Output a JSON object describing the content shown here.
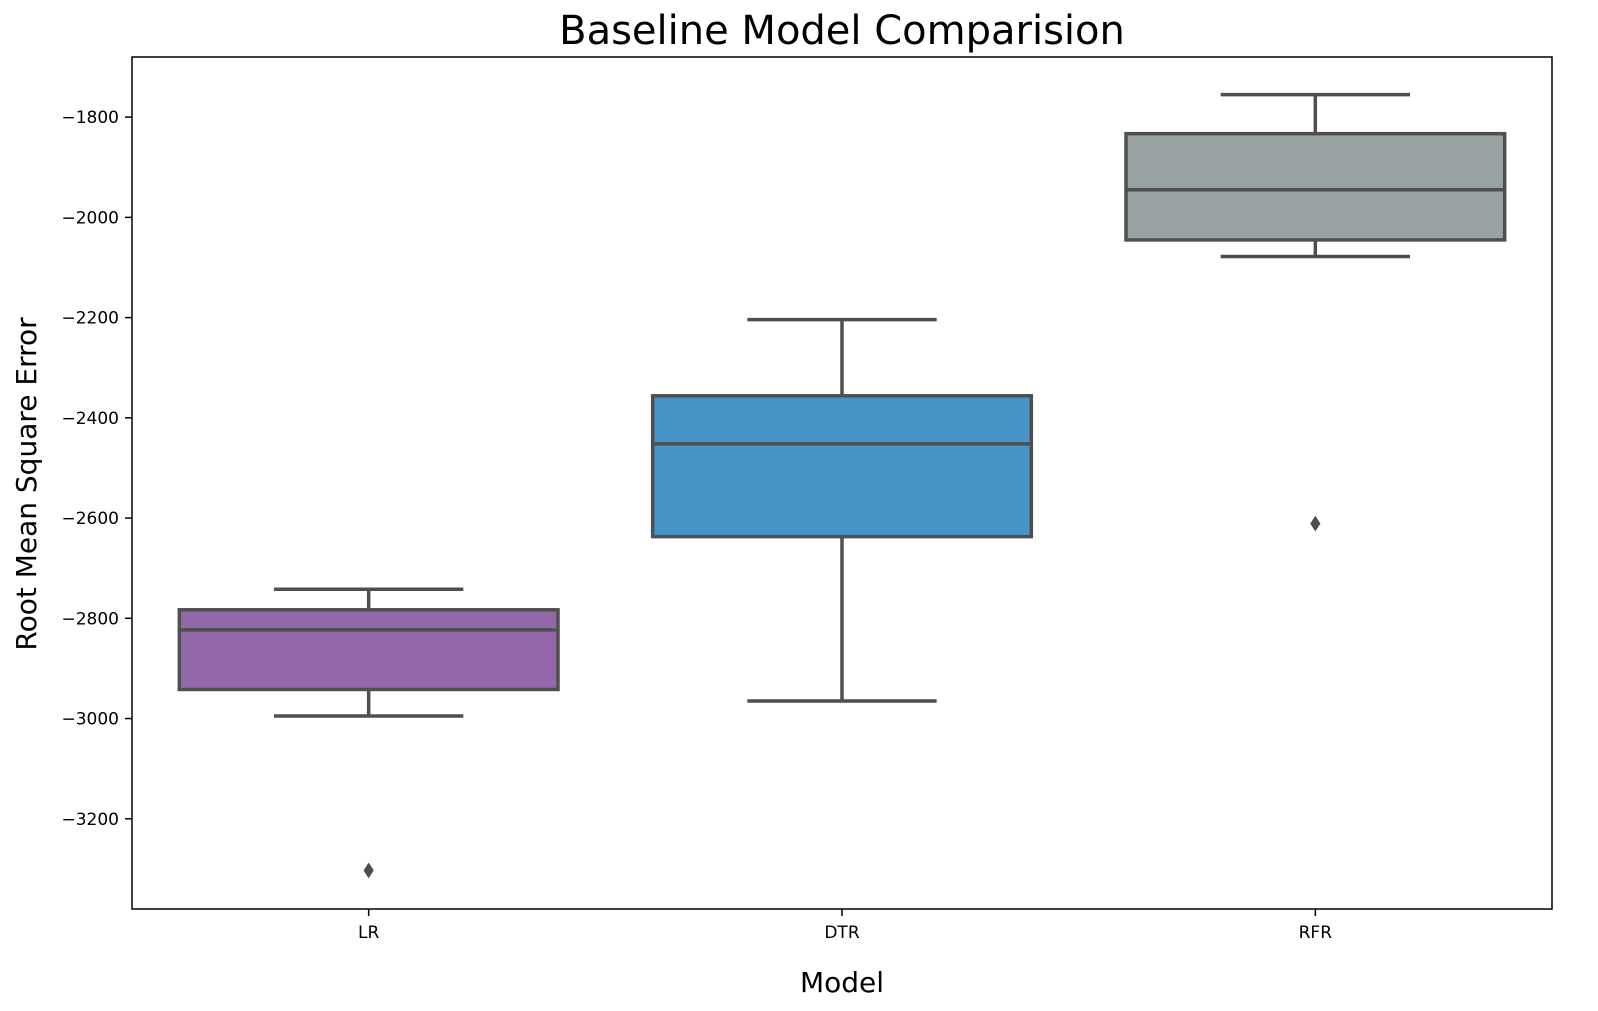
{
  "chart_data": {
    "type": "box",
    "title": "Baseline Model Comparision",
    "xlabel": "Model",
    "ylabel": "Root Mean Square Error",
    "categories": [
      "LR",
      "DTR",
      "RFR"
    ],
    "ylim": [
      -3380,
      -1680
    ],
    "yticks": [
      -1800,
      -2000,
      -2200,
      -2400,
      -2600,
      -2800,
      -3000,
      -3200
    ],
    "ytick_labels": [
      "−1800",
      "−2000",
      "−2200",
      "−2400",
      "−2600",
      "−2800",
      "−3000",
      "−3200"
    ],
    "grid": false,
    "boxes": [
      {
        "category": "LR",
        "whisker_low": -2995,
        "q1": -2942,
        "median": -2823,
        "q3": -2783,
        "whisker_high": -2742,
        "outliers": [
          -3303
        ],
        "color": "#9467ab"
      },
      {
        "category": "DTR",
        "whisker_low": -2965,
        "q1": -2637,
        "median": -2452,
        "q3": -2356,
        "whisker_high": -2204,
        "outliers": [],
        "color": "#4894c8"
      },
      {
        "category": "RFR",
        "whisker_low": -2078,
        "q1": -2045,
        "median": -1945,
        "q3": -1833,
        "whisker_high": -1755,
        "outliers": [
          -2611
        ],
        "color": "#98a2a3"
      }
    ],
    "line_color": "#4f4f4f"
  }
}
